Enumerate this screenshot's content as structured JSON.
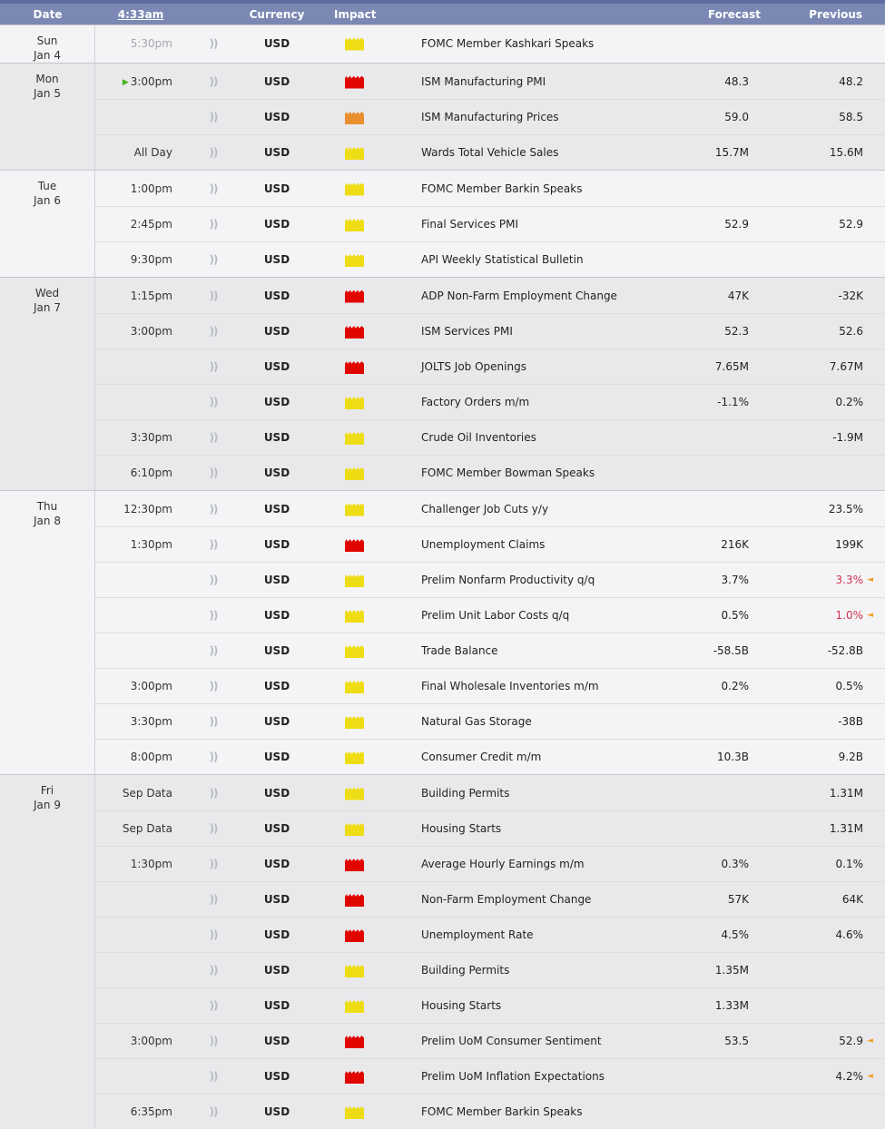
{
  "header": {
    "date": "Date",
    "time": "4:33am",
    "currency": "Currency",
    "impact": "Impact",
    "event": "",
    "forecast": "Forecast",
    "previous": "Previous"
  },
  "icons": {
    "audio_alert": "))",
    "play_active": "▶",
    "revision_marker": "◄"
  },
  "colors": {
    "header_top": "#5e6da1",
    "header_bg": "#7a88b3",
    "row_light": "#f4f4f6",
    "row_gray": "#e9e9eb",
    "border_day": "#c6c6cc",
    "border_row": "#dcdcdf",
    "impact_red": "#e10500",
    "impact_orange": "#e98f2e",
    "impact_yellow": "#eedd15",
    "value_red": "#cf3351",
    "marker": "#f0a12b",
    "text": "#222222",
    "time_muted": "#a8a8ac",
    "audio_icon": "#b6bcc8",
    "play_green": "#44b21b"
  },
  "days": [
    {
      "day": "Sun",
      "date": "Jan 4",
      "shade": "light",
      "events": [
        {
          "time": "5:30pm",
          "time_muted": true,
          "active": false,
          "currency": "USD",
          "impact": "yellow",
          "event": "FOMC Member Kashkari Speaks",
          "forecast": "",
          "previous": "",
          "previous_red": false,
          "revised": false
        }
      ]
    },
    {
      "day": "Mon",
      "date": "Jan 5",
      "shade": "gray",
      "events": [
        {
          "time": "3:00pm",
          "time_muted": false,
          "active": true,
          "currency": "USD",
          "impact": "red",
          "event": "ISM Manufacturing PMI",
          "forecast": "48.3",
          "previous": "48.2",
          "previous_red": false,
          "revised": false
        },
        {
          "time": "",
          "time_muted": false,
          "active": false,
          "currency": "USD",
          "impact": "orange",
          "event": "ISM Manufacturing Prices",
          "forecast": "59.0",
          "previous": "58.5",
          "previous_red": false,
          "revised": false
        },
        {
          "time": "All Day",
          "time_muted": false,
          "active": false,
          "currency": "USD",
          "impact": "yellow",
          "event": "Wards Total Vehicle Sales",
          "forecast": "15.7M",
          "previous": "15.6M",
          "previous_red": false,
          "revised": false
        }
      ]
    },
    {
      "day": "Tue",
      "date": "Jan 6",
      "shade": "light",
      "events": [
        {
          "time": "1:00pm",
          "time_muted": false,
          "active": false,
          "currency": "USD",
          "impact": "yellow",
          "event": "FOMC Member Barkin Speaks",
          "forecast": "",
          "previous": "",
          "previous_red": false,
          "revised": false
        },
        {
          "time": "2:45pm",
          "time_muted": false,
          "active": false,
          "currency": "USD",
          "impact": "yellow",
          "event": "Final Services PMI",
          "forecast": "52.9",
          "previous": "52.9",
          "previous_red": false,
          "revised": false
        },
        {
          "time": "9:30pm",
          "time_muted": false,
          "active": false,
          "currency": "USD",
          "impact": "yellow",
          "event": "API Weekly Statistical Bulletin",
          "forecast": "",
          "previous": "",
          "previous_red": false,
          "revised": false
        }
      ]
    },
    {
      "day": "Wed",
      "date": "Jan 7",
      "shade": "gray",
      "events": [
        {
          "time": "1:15pm",
          "time_muted": false,
          "active": false,
          "currency": "USD",
          "impact": "red",
          "event": "ADP Non-Farm Employment Change",
          "forecast": "47K",
          "previous": "-32K",
          "previous_red": false,
          "revised": false
        },
        {
          "time": "3:00pm",
          "time_muted": false,
          "active": false,
          "currency": "USD",
          "impact": "red",
          "event": "ISM Services PMI",
          "forecast": "52.3",
          "previous": "52.6",
          "previous_red": false,
          "revised": false
        },
        {
          "time": "",
          "time_muted": false,
          "active": false,
          "currency": "USD",
          "impact": "red",
          "event": "JOLTS Job Openings",
          "forecast": "7.65M",
          "previous": "7.67M",
          "previous_red": false,
          "revised": false
        },
        {
          "time": "",
          "time_muted": false,
          "active": false,
          "currency": "USD",
          "impact": "yellow",
          "event": "Factory Orders m/m",
          "forecast": "-1.1%",
          "previous": "0.2%",
          "previous_red": false,
          "revised": false
        },
        {
          "time": "3:30pm",
          "time_muted": false,
          "active": false,
          "currency": "USD",
          "impact": "yellow",
          "event": "Crude Oil Inventories",
          "forecast": "",
          "previous": "-1.9M",
          "previous_red": false,
          "revised": false
        },
        {
          "time": "6:10pm",
          "time_muted": false,
          "active": false,
          "currency": "USD",
          "impact": "yellow",
          "event": "FOMC Member Bowman Speaks",
          "forecast": "",
          "previous": "",
          "previous_red": false,
          "revised": false
        }
      ]
    },
    {
      "day": "Thu",
      "date": "Jan 8",
      "shade": "light",
      "events": [
        {
          "time": "12:30pm",
          "time_muted": false,
          "active": false,
          "currency": "USD",
          "impact": "yellow",
          "event": "Challenger Job Cuts y/y",
          "forecast": "",
          "previous": "23.5%",
          "previous_red": false,
          "revised": false
        },
        {
          "time": "1:30pm",
          "time_muted": false,
          "active": false,
          "currency": "USD",
          "impact": "red",
          "event": "Unemployment Claims",
          "forecast": "216K",
          "previous": "199K",
          "previous_red": false,
          "revised": false
        },
        {
          "time": "",
          "time_muted": false,
          "active": false,
          "currency": "USD",
          "impact": "yellow",
          "event": "Prelim Nonfarm Productivity q/q",
          "forecast": "3.7%",
          "previous": "3.3%",
          "previous_red": true,
          "revised": true
        },
        {
          "time": "",
          "time_muted": false,
          "active": false,
          "currency": "USD",
          "impact": "yellow",
          "event": "Prelim Unit Labor Costs q/q",
          "forecast": "0.5%",
          "previous": "1.0%",
          "previous_red": true,
          "revised": true
        },
        {
          "time": "",
          "time_muted": false,
          "active": false,
          "currency": "USD",
          "impact": "yellow",
          "event": "Trade Balance",
          "forecast": "-58.5B",
          "previous": "-52.8B",
          "previous_red": false,
          "revised": false
        },
        {
          "time": "3:00pm",
          "time_muted": false,
          "active": false,
          "currency": "USD",
          "impact": "yellow",
          "event": "Final Wholesale Inventories m/m",
          "forecast": "0.2%",
          "previous": "0.5%",
          "previous_red": false,
          "revised": false
        },
        {
          "time": "3:30pm",
          "time_muted": false,
          "active": false,
          "currency": "USD",
          "impact": "yellow",
          "event": "Natural Gas Storage",
          "forecast": "",
          "previous": "-38B",
          "previous_red": false,
          "revised": false
        },
        {
          "time": "8:00pm",
          "time_muted": false,
          "active": false,
          "currency": "USD",
          "impact": "yellow",
          "event": "Consumer Credit m/m",
          "forecast": "10.3B",
          "previous": "9.2B",
          "previous_red": false,
          "revised": false
        }
      ]
    },
    {
      "day": "Fri",
      "date": "Jan 9",
      "shade": "gray",
      "events": [
        {
          "time": "Sep Data",
          "time_muted": false,
          "active": false,
          "currency": "USD",
          "impact": "yellow",
          "event": "Building Permits",
          "forecast": "",
          "previous": "1.31M",
          "previous_red": false,
          "revised": false
        },
        {
          "time": "Sep Data",
          "time_muted": false,
          "active": false,
          "currency": "USD",
          "impact": "yellow",
          "event": "Housing Starts",
          "forecast": "",
          "previous": "1.31M",
          "previous_red": false,
          "revised": false
        },
        {
          "time": "1:30pm",
          "time_muted": false,
          "active": false,
          "currency": "USD",
          "impact": "red",
          "event": "Average Hourly Earnings m/m",
          "forecast": "0.3%",
          "previous": "0.1%",
          "previous_red": false,
          "revised": false
        },
        {
          "time": "",
          "time_muted": false,
          "active": false,
          "currency": "USD",
          "impact": "red",
          "event": "Non-Farm Employment Change",
          "forecast": "57K",
          "previous": "64K",
          "previous_red": false,
          "revised": false
        },
        {
          "time": "",
          "time_muted": false,
          "active": false,
          "currency": "USD",
          "impact": "red",
          "event": "Unemployment Rate",
          "forecast": "4.5%",
          "previous": "4.6%",
          "previous_red": false,
          "revised": false
        },
        {
          "time": "",
          "time_muted": false,
          "active": false,
          "currency": "USD",
          "impact": "yellow",
          "event": "Building Permits",
          "forecast": "1.35M",
          "previous": "",
          "previous_red": false,
          "revised": false
        },
        {
          "time": "",
          "time_muted": false,
          "active": false,
          "currency": "USD",
          "impact": "yellow",
          "event": "Housing Starts",
          "forecast": "1.33M",
          "previous": "",
          "previous_red": false,
          "revised": false
        },
        {
          "time": "3:00pm",
          "time_muted": false,
          "active": false,
          "currency": "USD",
          "impact": "red",
          "event": "Prelim UoM Consumer Sentiment",
          "forecast": "53.5",
          "previous": "52.9",
          "previous_red": false,
          "revised": true
        },
        {
          "time": "",
          "time_muted": false,
          "active": false,
          "currency": "USD",
          "impact": "red",
          "event": "Prelim UoM Inflation Expectations",
          "forecast": "",
          "previous": "4.2%",
          "previous_red": false,
          "revised": true
        },
        {
          "time": "6:35pm",
          "time_muted": false,
          "active": false,
          "currency": "USD",
          "impact": "yellow",
          "event": "FOMC Member Barkin Speaks",
          "forecast": "",
          "previous": "",
          "previous_red": false,
          "revised": false
        }
      ]
    }
  ]
}
